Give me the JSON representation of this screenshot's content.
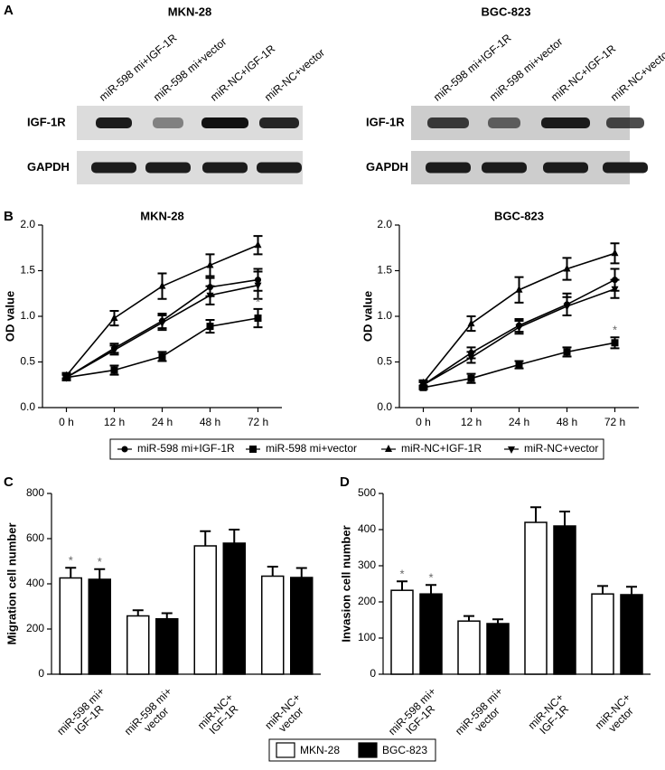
{
  "panel_labels": [
    "A",
    "B",
    "C",
    "D"
  ],
  "blots": [
    {
      "title": "MKN-28",
      "lanes": [
        "miR-598 mi+IGF-1R",
        "miR-598 mi+vector",
        "miR-NC+IGF-1R",
        "miR-NC+vector"
      ],
      "rows": [
        "IGF-1R",
        "GAPDH"
      ]
    },
    {
      "title": "BGC-823",
      "lanes": [
        "miR-598 mi+IGF-1R",
        "miR-598 mi+vector",
        "miR-NC+IGF-1R",
        "miR-NC+vector"
      ],
      "rows": [
        "IGF-1R",
        "GAPDH"
      ]
    }
  ],
  "chart_data": [
    {
      "type": "line",
      "title": "MKN-28",
      "y_label": "OD value",
      "categories": [
        "0 h",
        "12 h",
        "24 h",
        "48 h",
        "72 h"
      ],
      "series": [
        {
          "name": "miR-598 mi+IGF-1R",
          "color": "#000000",
          "marker": "circle",
          "values": [
            0.33,
            0.65,
            0.95,
            1.32,
            1.4
          ],
          "errors": [
            0.03,
            0.05,
            0.08,
            0.1,
            0.12
          ]
        },
        {
          "name": "miR-598 mi+vector",
          "color": "#000000",
          "marker": "square",
          "values": [
            0.33,
            0.41,
            0.56,
            0.89,
            0.98
          ],
          "errors": [
            0.03,
            0.05,
            0.05,
            0.07,
            0.1
          ]
        },
        {
          "name": "miR-NC+IGF-1R",
          "color": "#000000",
          "marker": "triangle",
          "values": [
            0.35,
            0.98,
            1.33,
            1.56,
            1.78
          ],
          "errors": [
            0.03,
            0.08,
            0.14,
            0.12,
            0.1
          ]
        },
        {
          "name": "miR-NC+vector",
          "color": "#000000",
          "marker": "triangle-down",
          "values": [
            0.33,
            0.63,
            0.93,
            1.23,
            1.34
          ],
          "errors": [
            0.03,
            0.05,
            0.08,
            0.1,
            0.15
          ]
        }
      ],
      "ylim": [
        0,
        2
      ],
      "yticks": [
        {
          "value": 0,
          "label": "0.0"
        },
        0.5,
        {
          "value": 1,
          "label": "1.0"
        },
        1.5,
        {
          "value": 2,
          "label": "2.0"
        }
      ],
      "annotations": [
        {
          "text": "*",
          "series": 1,
          "index": 4
        }
      ],
      "legend": "bottom"
    },
    {
      "type": "line",
      "title": "BGC-823",
      "y_label": "OD value",
      "categories": [
        "0 h",
        "12 h",
        "24 h",
        "48 h",
        "72 h"
      ],
      "series": [
        {
          "color": "#000000",
          "marker": "circle",
          "values": [
            0.25,
            0.6,
            0.9,
            1.13,
            1.4
          ],
          "errors": [
            0.03,
            0.06,
            0.07,
            0.12,
            0.12
          ]
        },
        {
          "color": "#000000",
          "marker": "square",
          "values": [
            0.22,
            0.32,
            0.47,
            0.61,
            0.71
          ],
          "errors": [
            0.02,
            0.05,
            0.04,
            0.05,
            0.06
          ]
        },
        {
          "color": "#000000",
          "marker": "triangle",
          "values": [
            0.27,
            0.92,
            1.29,
            1.52,
            1.69
          ],
          "errors": [
            0.03,
            0.08,
            0.14,
            0.12,
            0.11
          ]
        },
        {
          "color": "#000000",
          "marker": "triangle-down",
          "values": [
            0.25,
            0.55,
            0.88,
            1.11,
            1.3
          ],
          "errors": [
            0.03,
            0.06,
            0.07,
            0.1,
            0.1
          ]
        }
      ],
      "ylim": [
        0,
        2
      ],
      "yticks": [
        {
          "value": 0,
          "label": "0.0"
        },
        0.5,
        {
          "value": 1,
          "label": "1.0"
        },
        1.5,
        {
          "value": 2,
          "label": "2.0"
        }
      ],
      "annotations": [
        {
          "text": "*",
          "series": 1,
          "index": 4
        }
      ]
    },
    {
      "type": "bar",
      "y_label": "Migration cell number",
      "categories": [
        [
          "miR-598 mi+",
          "IGF-1R"
        ],
        [
          "miR-598 mi+",
          "vector"
        ],
        [
          "miR-NC+",
          "IGF-1R"
        ],
        [
          "miR-NC+",
          "vector"
        ]
      ],
      "series": [
        {
          "name": "MKN-28",
          "color": "#ffffff",
          "values": [
            426,
            258,
            568,
            434
          ],
          "errors": [
            45,
            25,
            65,
            42
          ]
        },
        {
          "name": "BGC-823",
          "color": "#000000",
          "values": [
            420,
            245,
            580,
            428
          ],
          "errors": [
            45,
            25,
            60,
            42
          ]
        }
      ],
      "ylim": [
        0,
        800
      ],
      "yticks": [
        0,
        200,
        400,
        600,
        800
      ],
      "annotations": [
        {
          "text": "*",
          "series": 0,
          "index": 0
        },
        {
          "text": "*",
          "series": 1,
          "index": 0
        }
      ],
      "legend": "bottom"
    },
    {
      "type": "bar",
      "y_label": "Invasion cell number",
      "categories": [
        [
          "miR-598 mi+",
          "IGF-1R"
        ],
        [
          "miR-598 mi+",
          "vector"
        ],
        [
          "miR-NC+",
          "IGF-1R"
        ],
        [
          "miR-NC+",
          "vector"
        ]
      ],
      "series": [
        {
          "color": "#ffffff",
          "values": [
            232,
            147,
            420,
            222
          ],
          "errors": [
            25,
            14,
            42,
            22
          ]
        },
        {
          "color": "#000000",
          "values": [
            222,
            140,
            410,
            220
          ],
          "errors": [
            25,
            12,
            40,
            22
          ]
        }
      ],
      "ylim": [
        0,
        500
      ],
      "yticks": [
        0,
        100,
        200,
        300,
        400,
        500
      ],
      "annotations": [
        {
          "text": "*",
          "series": 0,
          "index": 0
        },
        {
          "text": "*",
          "series": 1,
          "index": 0
        }
      ]
    }
  ]
}
